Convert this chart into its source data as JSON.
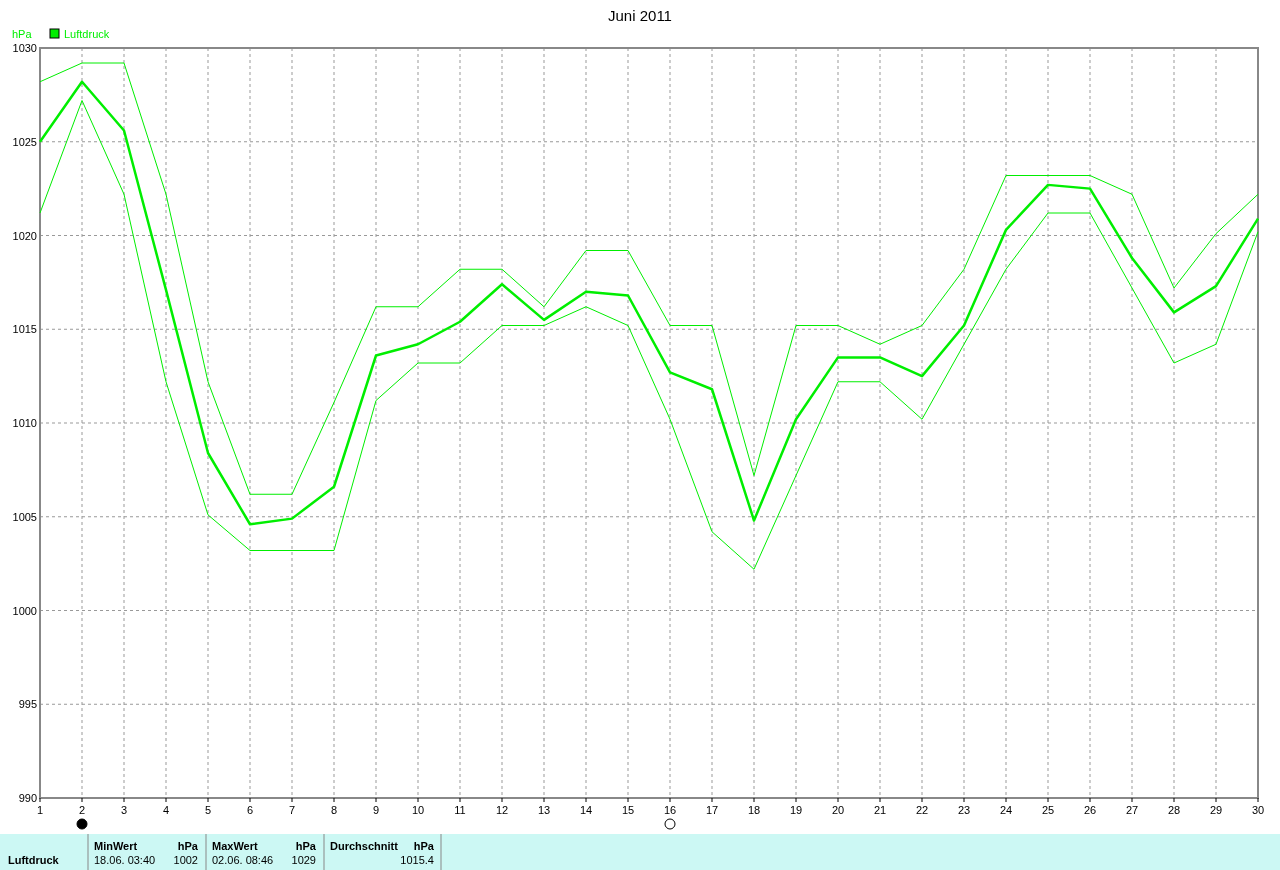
{
  "chart_data": {
    "type": "line",
    "title": "Juni 2011",
    "ylabel": "hPa",
    "x": [
      1,
      2,
      3,
      4,
      5,
      6,
      7,
      8,
      9,
      10,
      11,
      12,
      13,
      14,
      15,
      16,
      17,
      18,
      19,
      20,
      21,
      22,
      23,
      24,
      25,
      26,
      27,
      28,
      29,
      30
    ],
    "series": [
      {
        "name": "Luftdruck",
        "color": "#00ee00",
        "values": [
          1025.0,
          1028.2,
          1025.6,
          1017.1,
          1008.4,
          1004.6,
          1004.9,
          1006.6,
          1013.6,
          1014.2,
          1015.4,
          1017.4,
          1015.5,
          1017.0,
          1016.8,
          1012.7,
          1011.8,
          1004.8,
          1010.2,
          1013.5,
          1013.5,
          1012.5,
          1015.2,
          1020.3,
          1022.7,
          1022.5,
          1018.8,
          1015.9,
          1017.3,
          1020.9
        ]
      },
      {
        "color": "#00ee00",
        "values": [
          1028.2,
          1029.2,
          1029.2,
          1022.2,
          1012.2,
          1006.2,
          1006.2,
          1011.1,
          1016.2,
          1016.2,
          1018.2,
          1018.2,
          1016.2,
          1019.2,
          1019.2,
          1015.2,
          1015.2,
          1007.2,
          1015.2,
          1015.2,
          1014.2,
          1015.2,
          1018.2,
          1023.2,
          1023.2,
          1023.2,
          1022.2,
          1017.2,
          1020.1,
          1022.2
        ]
      },
      {
        "color": "#00ee00",
        "values": [
          1021.2,
          1027.2,
          1022.2,
          1012.2,
          1005.1,
          1003.2,
          1003.2,
          1003.2,
          1011.2,
          1013.2,
          1013.2,
          1015.2,
          1015.2,
          1016.2,
          1015.2,
          1010.2,
          1004.2,
          1002.2,
          1007.2,
          1012.2,
          1012.2,
          1010.2,
          1014.2,
          1018.2,
          1021.2,
          1021.2,
          1017.2,
          1013.2,
          1014.2,
          1020.2
        ]
      }
    ],
    "xlim": [
      1,
      30
    ],
    "xticks": [
      1,
      2,
      3,
      4,
      5,
      6,
      7,
      8,
      9,
      10,
      11,
      12,
      13,
      14,
      15,
      16,
      17,
      18,
      19,
      20,
      21,
      22,
      23,
      24,
      25,
      26,
      27,
      28,
      29,
      30
    ],
    "ylim": [
      990,
      1030
    ],
    "yticks": [
      990,
      995,
      1000,
      1005,
      1010,
      1015,
      1020,
      1025,
      1030
    ],
    "grid": true,
    "legend": "top left",
    "marker": "none",
    "line_style": "solid",
    "annotations": [
      "Luftdruck",
      "MinWert",
      "hPa",
      "18.06.  03:40",
      "1002",
      "MaxWert",
      "hPa",
      "02.06.  08:46",
      "1029",
      "Durchschnitt",
      "hPa",
      "1015.4"
    ]
  }
}
